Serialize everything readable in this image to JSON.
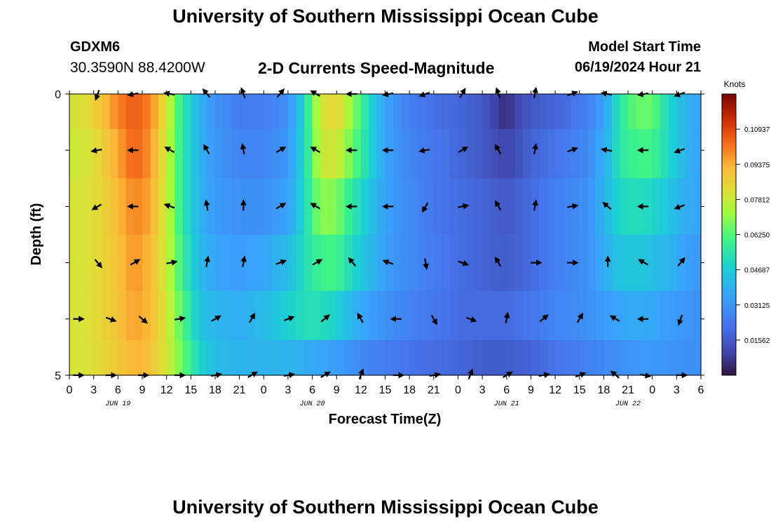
{
  "header": {
    "title": "University of Southern Mississippi Ocean Cube",
    "station": "GDXM6",
    "coords": "30.3590N  88.4200W",
    "subtitle": "2-D Currents Speed-Magnitude",
    "model_start_label": "Model Start Time",
    "model_start_value": "06/19/2024 Hour 21",
    "footer_title": "University of Southern Mississippi Ocean Cube"
  },
  "chart_data": {
    "type": "heatmap",
    "title": "2-D Currents Speed-Magnitude",
    "xlabel": "Forecast Time(Z)",
    "ylabel": "Depth (ft)",
    "colorbar_label": "Knots",
    "x_ticks": [
      "0",
      "3",
      "6",
      "9",
      "12",
      "15",
      "18",
      "21",
      "0",
      "3",
      "6",
      "9",
      "12",
      "15",
      "18",
      "21",
      "0",
      "3",
      "6",
      "9",
      "12",
      "15",
      "18",
      "21",
      "0",
      "3",
      "6"
    ],
    "x_date_labels": [
      {
        "label": "JUN 19",
        "at_hour": 6
      },
      {
        "label": "JUN 20",
        "at_hour": 30
      },
      {
        "label": "JUN 21",
        "at_hour": 54
      },
      {
        "label": "JUN 22",
        "at_hour": 69
      }
    ],
    "x_range_hours": [
      0,
      78
    ],
    "y_ticks": [
      "0",
      "5"
    ],
    "y_range_ft": [
      0,
      5
    ],
    "colorbar_ticks": [
      "0.01562",
      "0.03125",
      "0.04687",
      "0.06250",
      "0.07812",
      "0.09375",
      "0.10937"
    ],
    "colorbar_range": [
      0,
      0.125
    ],
    "depth_layers": [
      {
        "depth_ft": 0.25,
        "speed_profile": [
          [
            0,
            0.08
          ],
          [
            2,
            0.082
          ],
          [
            4,
            0.09
          ],
          [
            6,
            0.1
          ],
          [
            8,
            0.106
          ],
          [
            10,
            0.1
          ],
          [
            12,
            0.08
          ],
          [
            14,
            0.055
          ],
          [
            16,
            0.04
          ],
          [
            18,
            0.03
          ],
          [
            21,
            0.025
          ],
          [
            24,
            0.025
          ],
          [
            27,
            0.03
          ],
          [
            29,
            0.05
          ],
          [
            31,
            0.08
          ],
          [
            33,
            0.085
          ],
          [
            35,
            0.07
          ],
          [
            37,
            0.05
          ],
          [
            39,
            0.035
          ],
          [
            42,
            0.025
          ],
          [
            46,
            0.02
          ],
          [
            49,
            0.018
          ],
          [
            51,
            0.015
          ],
          [
            54,
            0.005
          ],
          [
            55,
            0.01
          ],
          [
            57,
            0.015
          ],
          [
            60,
            0.018
          ],
          [
            64,
            0.025
          ],
          [
            66,
            0.035
          ],
          [
            68,
            0.055
          ],
          [
            70,
            0.065
          ],
          [
            72,
            0.065
          ],
          [
            74,
            0.05
          ],
          [
            76,
            0.04
          ],
          [
            78,
            0.035
          ]
        ]
      },
      {
        "depth_ft": 1,
        "speed_profile": [
          [
            0,
            0.078
          ],
          [
            3,
            0.082
          ],
          [
            6,
            0.095
          ],
          [
            8,
            0.105
          ],
          [
            10,
            0.098
          ],
          [
            12,
            0.078
          ],
          [
            14,
            0.055
          ],
          [
            16,
            0.04
          ],
          [
            18,
            0.032
          ],
          [
            21,
            0.027
          ],
          [
            24,
            0.027
          ],
          [
            27,
            0.032
          ],
          [
            29,
            0.05
          ],
          [
            31,
            0.078
          ],
          [
            33,
            0.08
          ],
          [
            35,
            0.065
          ],
          [
            37,
            0.05
          ],
          [
            39,
            0.035
          ],
          [
            42,
            0.027
          ],
          [
            46,
            0.022
          ],
          [
            49,
            0.018
          ],
          [
            51,
            0.015
          ],
          [
            54,
            0.01
          ],
          [
            55,
            0.012
          ],
          [
            57,
            0.018
          ],
          [
            60,
            0.022
          ],
          [
            64,
            0.028
          ],
          [
            66,
            0.038
          ],
          [
            68,
            0.055
          ],
          [
            70,
            0.06
          ],
          [
            72,
            0.06
          ],
          [
            74,
            0.05
          ],
          [
            76,
            0.04
          ],
          [
            78,
            0.035
          ]
        ]
      },
      {
        "depth_ft": 2,
        "speed_profile": [
          [
            0,
            0.08
          ],
          [
            3,
            0.082
          ],
          [
            6,
            0.092
          ],
          [
            8,
            0.1
          ],
          [
            10,
            0.095
          ],
          [
            12,
            0.078
          ],
          [
            14,
            0.055
          ],
          [
            16,
            0.04
          ],
          [
            18,
            0.033
          ],
          [
            21,
            0.03
          ],
          [
            24,
            0.03
          ],
          [
            27,
            0.035
          ],
          [
            29,
            0.05
          ],
          [
            31,
            0.07
          ],
          [
            33,
            0.068
          ],
          [
            35,
            0.055
          ],
          [
            37,
            0.045
          ],
          [
            39,
            0.035
          ],
          [
            42,
            0.028
          ],
          [
            46,
            0.022
          ],
          [
            49,
            0.02
          ],
          [
            51,
            0.018
          ],
          [
            54,
            0.015
          ],
          [
            57,
            0.02
          ],
          [
            60,
            0.025
          ],
          [
            64,
            0.03
          ],
          [
            66,
            0.04
          ],
          [
            68,
            0.05
          ],
          [
            70,
            0.052
          ],
          [
            72,
            0.05
          ],
          [
            74,
            0.045
          ],
          [
            76,
            0.038
          ],
          [
            78,
            0.035
          ]
        ]
      },
      {
        "depth_ft": 3,
        "speed_profile": [
          [
            0,
            0.08
          ],
          [
            3,
            0.082
          ],
          [
            6,
            0.09
          ],
          [
            8,
            0.098
          ],
          [
            10,
            0.092
          ],
          [
            12,
            0.078
          ],
          [
            14,
            0.058
          ],
          [
            16,
            0.042
          ],
          [
            18,
            0.036
          ],
          [
            21,
            0.034
          ],
          [
            24,
            0.036
          ],
          [
            27,
            0.042
          ],
          [
            29,
            0.052
          ],
          [
            31,
            0.06
          ],
          [
            33,
            0.06
          ],
          [
            35,
            0.05
          ],
          [
            37,
            0.042
          ],
          [
            39,
            0.034
          ],
          [
            42,
            0.028
          ],
          [
            46,
            0.023
          ],
          [
            49,
            0.02
          ],
          [
            51,
            0.018
          ],
          [
            54,
            0.016
          ],
          [
            57,
            0.02
          ],
          [
            60,
            0.025
          ],
          [
            64,
            0.03
          ],
          [
            66,
            0.038
          ],
          [
            68,
            0.045
          ],
          [
            70,
            0.045
          ],
          [
            72,
            0.043
          ],
          [
            74,
            0.04
          ],
          [
            76,
            0.035
          ],
          [
            78,
            0.032
          ]
        ]
      },
      {
        "depth_ft": 4,
        "speed_profile": [
          [
            0,
            0.08
          ],
          [
            3,
            0.082
          ],
          [
            6,
            0.09
          ],
          [
            8,
            0.096
          ],
          [
            10,
            0.092
          ],
          [
            12,
            0.08
          ],
          [
            14,
            0.062
          ],
          [
            16,
            0.045
          ],
          [
            18,
            0.04
          ],
          [
            21,
            0.038
          ],
          [
            24,
            0.042
          ],
          [
            27,
            0.048
          ],
          [
            29,
            0.052
          ],
          [
            31,
            0.052
          ],
          [
            33,
            0.048
          ],
          [
            35,
            0.04
          ],
          [
            37,
            0.034
          ],
          [
            39,
            0.03
          ],
          [
            42,
            0.026
          ],
          [
            46,
            0.022
          ],
          [
            49,
            0.02
          ],
          [
            51,
            0.02
          ],
          [
            54,
            0.02
          ],
          [
            57,
            0.023
          ],
          [
            60,
            0.027
          ],
          [
            64,
            0.03
          ],
          [
            66,
            0.033
          ],
          [
            68,
            0.036
          ],
          [
            70,
            0.038
          ],
          [
            72,
            0.036
          ],
          [
            74,
            0.034
          ],
          [
            76,
            0.032
          ],
          [
            78,
            0.03
          ]
        ]
      },
      {
        "depth_ft": 4.75,
        "speed_profile": [
          [
            0,
            0.08
          ],
          [
            3,
            0.082
          ],
          [
            6,
            0.088
          ],
          [
            8,
            0.094
          ],
          [
            10,
            0.09
          ],
          [
            12,
            0.08
          ],
          [
            14,
            0.065
          ],
          [
            16,
            0.05
          ],
          [
            18,
            0.042
          ],
          [
            21,
            0.04
          ],
          [
            24,
            0.04
          ],
          [
            27,
            0.04
          ],
          [
            29,
            0.038
          ],
          [
            31,
            0.036
          ],
          [
            33,
            0.034
          ],
          [
            35,
            0.03
          ],
          [
            37,
            0.027
          ],
          [
            39,
            0.025
          ],
          [
            42,
            0.022
          ],
          [
            46,
            0.02
          ],
          [
            49,
            0.018
          ],
          [
            51,
            0.016
          ],
          [
            54,
            0.016
          ],
          [
            57,
            0.018
          ],
          [
            60,
            0.022
          ],
          [
            64,
            0.026
          ],
          [
            66,
            0.028
          ],
          [
            68,
            0.03
          ],
          [
            70,
            0.032
          ],
          [
            72,
            0.032
          ],
          [
            74,
            0.031
          ],
          [
            76,
            0.03
          ],
          [
            78,
            0.03
          ]
        ]
      }
    ],
    "vectors": [
      {
        "depth_ft": 0,
        "hours": [
          3.5,
          8,
          12.5,
          17,
          21.5,
          26,
          30.5,
          35,
          39.5,
          44,
          48.5,
          53,
          57.5,
          62,
          66.5,
          71,
          75.5
        ],
        "direction_deg": [
          200,
          260,
          280,
          320,
          340,
          40,
          300,
          270,
          260,
          250,
          30,
          340,
          10,
          70,
          280,
          260,
          250
        ]
      },
      {
        "depth_ft": 1,
        "hours": [
          3.5,
          8,
          12.5,
          17,
          21.5,
          26,
          30.5,
          35,
          39.5,
          44,
          48.5,
          53,
          57.5,
          62,
          66.5,
          71,
          75.5
        ],
        "direction_deg": [
          260,
          270,
          300,
          330,
          350,
          60,
          300,
          270,
          270,
          260,
          60,
          330,
          10,
          70,
          280,
          270,
          250
        ]
      },
      {
        "depth_ft": 2,
        "hours": [
          3.5,
          8,
          12.5,
          17,
          21.5,
          26,
          30.5,
          35,
          39.5,
          44,
          48.5,
          53,
          57.5,
          62,
          66.5,
          71,
          75.5
        ],
        "direction_deg": [
          240,
          270,
          290,
          350,
          0,
          60,
          300,
          270,
          270,
          210,
          80,
          330,
          10,
          80,
          310,
          270,
          250
        ]
      },
      {
        "depth_ft": 3,
        "hours": [
          3.5,
          8,
          12.5,
          17,
          21.5,
          26,
          30.5,
          35,
          39.5,
          44,
          48.5,
          53,
          57.5,
          62,
          66.5,
          71,
          75.5
        ],
        "direction_deg": [
          140,
          60,
          80,
          10,
          10,
          70,
          60,
          320,
          290,
          170,
          110,
          330,
          90,
          90,
          0,
          300,
          40
        ]
      },
      {
        "depth_ft": 4,
        "hours": [
          1,
          5,
          9,
          13.5,
          18,
          22.5,
          27,
          31.5,
          36,
          40.5,
          45,
          49.5,
          54,
          58.5,
          63,
          67.5,
          71,
          75.5
        ],
        "direction_deg": [
          90,
          110,
          130,
          80,
          60,
          30,
          70,
          50,
          330,
          270,
          150,
          110,
          10,
          50,
          30,
          300,
          270,
          200
        ]
      },
      {
        "depth_ft": 5,
        "hours": [
          1,
          5,
          9,
          13.5,
          18,
          22.5,
          27,
          31.5,
          36,
          40.5,
          45,
          49.5,
          54,
          58.5,
          63,
          67.5,
          71,
          75.5
        ],
        "direction_deg": [
          90,
          90,
          90,
          90,
          80,
          60,
          80,
          60,
          20,
          90,
          80,
          20,
          60,
          80,
          70,
          310,
          100,
          90
        ]
      }
    ]
  }
}
